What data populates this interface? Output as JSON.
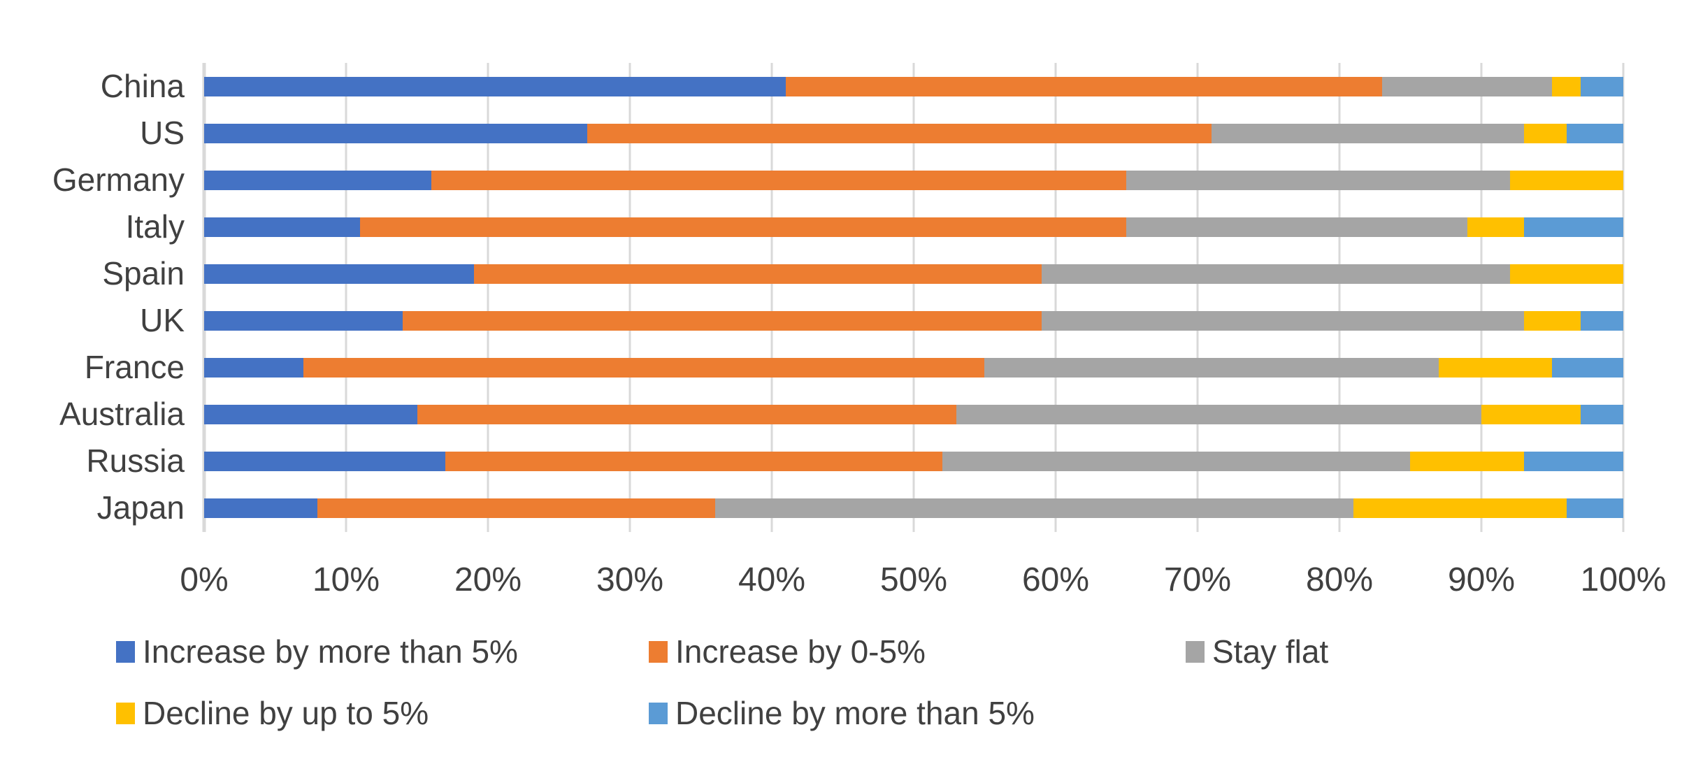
{
  "chart_data": {
    "type": "bar",
    "orientation": "horizontal",
    "stacked": true,
    "title": "",
    "categories": [
      "China",
      "US",
      "Germany",
      "Italy",
      "Spain",
      "UK",
      "France",
      "Australia",
      "Russia",
      "Japan"
    ],
    "series": [
      {
        "name": "Increase by more than 5%",
        "color": "#4472C4",
        "values": [
          41,
          27,
          16,
          11,
          19,
          14,
          7,
          15,
          17,
          8
        ]
      },
      {
        "name": "Increase by 0-5%",
        "color": "#ED7D31",
        "values": [
          42,
          44,
          49,
          54,
          40,
          45,
          48,
          38,
          35,
          28
        ]
      },
      {
        "name": "Stay flat",
        "color": "#A5A5A5",
        "values": [
          12,
          22,
          27,
          24,
          33,
          34,
          32,
          37,
          33,
          45
        ]
      },
      {
        "name": "Decline by up to 5%",
        "color": "#FFC000",
        "values": [
          2,
          3,
          8,
          4,
          8,
          4,
          8,
          7,
          8,
          15
        ]
      },
      {
        "name": "Decline by more than 5%",
        "color": "#5B9BD5",
        "values": [
          3,
          4,
          0,
          7,
          0,
          3,
          5,
          3,
          7,
          4
        ]
      }
    ],
    "x_axis": {
      "min": 0,
      "max": 100,
      "tick_step": 10,
      "tick_labels": [
        "0%",
        "10%",
        "20%",
        "30%",
        "40%",
        "50%",
        "60%",
        "70%",
        "80%",
        "90%",
        "100%"
      ]
    },
    "grid": true,
    "legend_position": "bottom",
    "legend_row_split": [
      3,
      2
    ]
  },
  "colors": {
    "gridline": "#D9D9D9",
    "text": "#404040",
    "background": "#FFFFFF"
  }
}
